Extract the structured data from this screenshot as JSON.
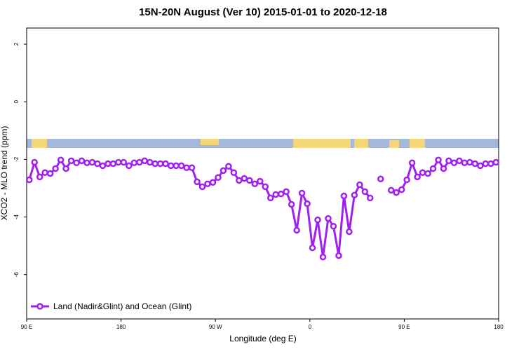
{
  "chart_data": {
    "type": "line",
    "title": "15N-20N August (Ver 10)   2015-01-01 to 2020-12-18",
    "x_label": "Longitude (deg E)",
    "y_label": "XCO2 - MLO trend (ppm)",
    "xlim": [
      90,
      540
    ],
    "ylim": [
      -7.54,
      2.56
    ],
    "xticks": [
      {
        "value": 90,
        "label": "90 E"
      },
      180,
      {
        "value": 270,
        "label": "90 W"
      },
      {
        "value": 360,
        "label": "0"
      },
      {
        "value": 450,
        "label": "90 E"
      },
      {
        "value": 540,
        "label": "180"
      }
    ],
    "yticks": [
      2,
      0,
      -2,
      -4,
      -6
    ],
    "legend": "bottom-left",
    "x": [
      92.5,
      97.5,
      102.5,
      107.5,
      112.5,
      117.5,
      122.5,
      127.5,
      132.5,
      137.5,
      142.5,
      147.5,
      152.5,
      157.5,
      162.5,
      167.5,
      172.5,
      177.5,
      182.5,
      187.5,
      192.5,
      197.5,
      202.5,
      207.5,
      212.5,
      217.5,
      222.5,
      227.5,
      232.5,
      237.5,
      242.5,
      247.5,
      252.5,
      257.5,
      262.5,
      267.5,
      272.5,
      277.5,
      282.5,
      287.5,
      292.5,
      297.5,
      302.5,
      307.5,
      312.5,
      317.5,
      322.5,
      327.5,
      332.5,
      337.5,
      342.5,
      347.5,
      352.5,
      357.5,
      362.5,
      367.5,
      372.5,
      377.5,
      382.5,
      387.5,
      392.5,
      397.5,
      402.5,
      407.5,
      412.5,
      417.5,
      422.5,
      427.5,
      432.5,
      437.5,
      442.5,
      447.5,
      452.5,
      457.5,
      462.5,
      467.5,
      472.5,
      477.5,
      482.5,
      487.5,
      492.5,
      497.5,
      502.5,
      507.5,
      512.5,
      517.5,
      522.5,
      527.5,
      532.5,
      537.5
    ],
    "series": [
      {
        "name": "Land (Nadir&Glint) and Ocean (Glint)",
        "color": "#a020f0",
        "values": [
          -2.71,
          -2.1,
          -2.61,
          -2.46,
          -2.49,
          -2.32,
          -2.02,
          -2.32,
          -2.05,
          -2.12,
          -2.05,
          -2.12,
          -2.1,
          -2.15,
          -2.22,
          -2.15,
          -2.15,
          -2.1,
          -2.1,
          -2.22,
          -2.12,
          -2.1,
          -2.05,
          -2.1,
          -2.15,
          -2.15,
          -2.15,
          -2.22,
          -2.22,
          -2.22,
          -2.29,
          -2.29,
          -2.78,
          -2.95,
          -2.85,
          -2.8,
          -2.63,
          -2.39,
          -2.24,
          -2.46,
          -2.73,
          -2.66,
          -2.73,
          -2.85,
          -2.76,
          -2.95,
          -3.34,
          -3.22,
          -3.2,
          -3.12,
          -3.56,
          -4.46,
          -3.17,
          -3.54,
          -5.07,
          -4.1,
          -5.39,
          -4.05,
          -4.32,
          -5.34,
          -3.27,
          -4.51,
          -3.24,
          -2.88,
          -3.12,
          -3.34,
          null,
          -2.68,
          null,
          -3.07,
          -3.15,
          -3.05,
          -2.71,
          -2.12,
          -2.61,
          -2.46,
          -2.49,
          -2.32,
          -2.02,
          -2.32,
          -2.05,
          -2.12,
          -2.05,
          -2.12,
          -2.1,
          -2.15,
          -2.22,
          -2.15,
          -2.15,
          -2.1
        ]
      }
    ]
  }
}
